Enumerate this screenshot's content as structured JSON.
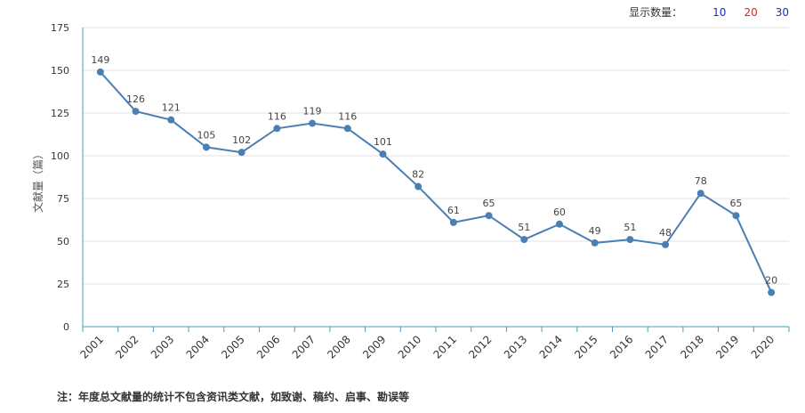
{
  "display_count": {
    "label": "显示数量：",
    "options": [
      {
        "label": "10",
        "color": "#1a2ebf"
      },
      {
        "label": "20",
        "color": "#e02020"
      },
      {
        "label": "30",
        "color": "#1a2ebf"
      }
    ]
  },
  "note": "注：年度总文献量的统计不包含资讯类文献，如致谢、稿约、启事、勘误等",
  "chart_data": {
    "type": "line",
    "title": "",
    "xlabel": "",
    "ylabel": "文献量（篇）",
    "ylim": [
      0,
      175
    ],
    "yticks": [
      0,
      25,
      50,
      75,
      100,
      125,
      150,
      175
    ],
    "grid": true,
    "categories": [
      "2001",
      "2002",
      "2003",
      "2004",
      "2005",
      "2006",
      "2007",
      "2008",
      "2009",
      "2010",
      "2011",
      "2012",
      "2013",
      "2014",
      "2015",
      "2016",
      "2017",
      "2018",
      "2019",
      "2020"
    ],
    "series": [
      {
        "values": [
          149,
          126,
          121,
          105,
          102,
          116,
          119,
          116,
          101,
          82,
          61,
          65,
          51,
          60,
          49,
          51,
          48,
          78,
          65,
          20
        ],
        "color": "#4a7fb5"
      }
    ]
  }
}
